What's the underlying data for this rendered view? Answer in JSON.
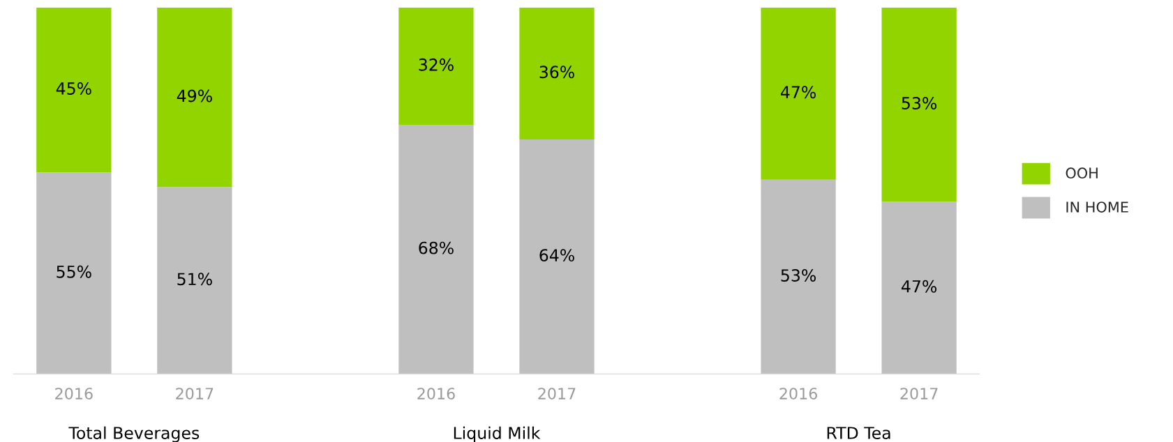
{
  "chart_data": {
    "type": "bar",
    "stacked": true,
    "categories": [
      "2016",
      "2017",
      null,
      "2016",
      "2017",
      null,
      "2016",
      "2017"
    ],
    "series": [
      {
        "name": "IN HOME",
        "color": "#bfbfbf",
        "values": [
          55,
          51,
          null,
          68,
          64,
          null,
          53,
          47
        ],
        "value_labels": [
          "55%",
          "51%",
          null,
          "68%",
          "64%",
          null,
          "53%",
          "47%"
        ]
      },
      {
        "name": "OOH",
        "color": "#92d400",
        "values": [
          45,
          49,
          null,
          32,
          36,
          null,
          47,
          53
        ],
        "value_labels": [
          "45%",
          "49%",
          null,
          "32%",
          "36%",
          null,
          "47%",
          "53%"
        ]
      }
    ],
    "grid": false,
    "legend": "right",
    "annotations": [
      "Total Beverages",
      "Liquid Milk",
      "RTD Tea"
    ]
  }
}
